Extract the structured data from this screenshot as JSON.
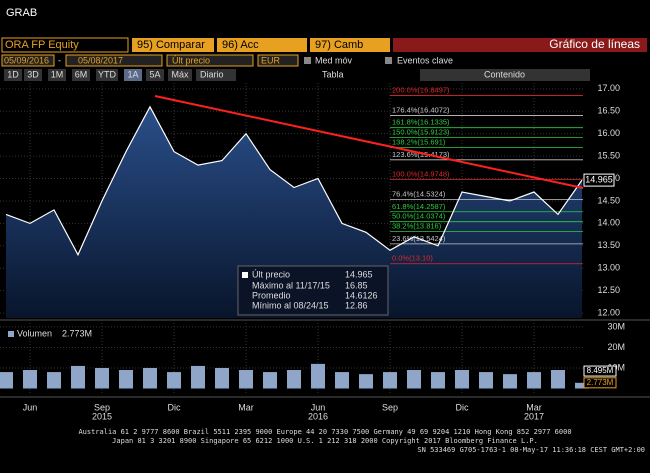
{
  "ui": {
    "title": "GRAB",
    "ticker": "ORA FP Equity",
    "buttons": [
      "95) Comparar",
      "96) Acc",
      "97) Camb"
    ],
    "chart_type": "Gráfico de líneas",
    "start_date": "05/09/2016",
    "date_sep": "-",
    "end_date": "05/08/2017",
    "field": "Últ precio",
    "currency": "EUR",
    "options": [
      "Med móv",
      "Eventos clave"
    ],
    "ranges": [
      "1D",
      "3D",
      "1M",
      "6M",
      "YTD",
      "1A",
      "5A",
      "Máx"
    ],
    "period": "Diario",
    "table": "Tabla",
    "content": "Contenido",
    "footer": [
      "Australia 61 2 9777 8600 Brazil 5511 2395 9000 Europe 44 20 7330 7500 Germany 49 69 9204 1210 Hong Kong 852 2977 6000",
      "Japan 81 3 3201 8900        Singapore 65 6212 1000        U.S. 1 212 318 2000        Copyright 2017 Bloomberg Finance L.P.",
      "SN 533469 G705-1763-1 08-May-17 11:36:18 CEST GMT+2:00"
    ]
  },
  "chart_data": [
    {
      "type": "line",
      "x": [
        "2015-05",
        "2015-06",
        "2015-07",
        "2015-08",
        "2015-09",
        "2015-10",
        "2015-11",
        "2015-12",
        "2016-01",
        "2016-02",
        "2016-03",
        "2016-04",
        "2016-05",
        "2016-06",
        "2016-07",
        "2016-08",
        "2016-09",
        "2016-10",
        "2016-11",
        "2016-12",
        "2017-01",
        "2017-02",
        "2017-03",
        "2017-04",
        "2017-05"
      ],
      "series": [
        {
          "name": "Últ precio",
          "color": "#ffffff",
          "values": [
            14.2,
            14.0,
            14.3,
            13.3,
            14.5,
            15.6,
            16.6,
            15.6,
            15.3,
            15.4,
            16.0,
            15.2,
            14.8,
            15.0,
            14.0,
            13.8,
            13.4,
            13.7,
            13.5,
            14.7,
            14.6,
            14.5,
            14.7,
            14.2,
            14.965
          ]
        }
      ],
      "xlim": [
        "2015-05",
        "2017-05"
      ],
      "ylim": [
        11.89,
        17.13
      ],
      "yticks": [
        {
          "value": 12,
          "label": "12.00"
        },
        {
          "value": 12.5,
          "label": "12.50"
        },
        {
          "value": 13,
          "label": "13.00"
        },
        {
          "value": 13.5,
          "label": "13.50"
        },
        {
          "value": 14,
          "label": "14.00"
        },
        {
          "value": 14.5,
          "label": "14.50"
        },
        {
          "value": 15,
          "label": "15.00"
        },
        {
          "value": 15.5,
          "label": "15.50"
        },
        {
          "value": 16,
          "label": "16.00"
        },
        {
          "value": 16.5,
          "label": "16.50"
        },
        {
          "value": 17,
          "label": "17.00"
        }
      ],
      "xticks": [
        {
          "value": "2015-06",
          "label": "Jun"
        },
        {
          "value": "2015-09",
          "label": "Sep"
        },
        {
          "value": "2015-12",
          "label": "Dic"
        },
        {
          "value": "2016-03",
          "label": "Mar"
        },
        {
          "value": "2016-06",
          "label": "Jun"
        },
        {
          "value": "2016-09",
          "label": "Sep"
        },
        {
          "value": "2016-12",
          "label": "Dic"
        },
        {
          "value": "2017-03",
          "label": "Mar"
        }
      ],
      "year_labels": [
        {
          "value": "2015-09",
          "label": "2015"
        },
        {
          "value": "2016-06",
          "label": "2016"
        },
        {
          "value": "2017-03",
          "label": "2017"
        }
      ],
      "fib_levels": [
        {
          "label": "200.0%(16.8497)",
          "value": 16.8497,
          "color": "#e02828"
        },
        {
          "label": "176.4%(16.4072)",
          "value": 16.4072,
          "color": "#c8c8c8"
        },
        {
          "label": "161.8%(16.1335)",
          "value": 16.1335,
          "color": "#2ecc40"
        },
        {
          "label": "150.0%(15.9123)",
          "value": 15.9123,
          "color": "#2ecc40"
        },
        {
          "label": "138.2%(15.691)",
          "value": 15.691,
          "color": "#2ecc40"
        },
        {
          "label": "123.6%(15.4173)",
          "value": 15.4173,
          "color": "#c8c8c8"
        },
        {
          "label": "100.0%(14.9748)",
          "value": 14.9748,
          "color": "#e02828"
        },
        {
          "label": "76.4%(14.5324)",
          "value": 14.5324,
          "color": "#c8c8c8"
        },
        {
          "label": "61.8%(14.2587)",
          "value": 14.2587,
          "color": "#2ecc40"
        },
        {
          "label": "50.0%(14.0374)",
          "value": 14.0374,
          "color": "#2ecc40"
        },
        {
          "label": "38.2%(13.816)",
          "value": 13.816,
          "color": "#2ecc40"
        },
        {
          "label": "23.6%(13.5424)",
          "value": 13.5424,
          "color": "#c8c8c8"
        },
        {
          "label": "0.0%(13.10)",
          "value": 13.1,
          "color": "#e02828"
        }
      ],
      "stats": [
        {
          "name": "Máximo al 11/17/15",
          "value": 16.85
        },
        {
          "name": "Promedio",
          "value": 14.6126
        },
        {
          "name": "Mínimo al 08/24/15",
          "value": 12.86
        }
      ]
    },
    {
      "type": "bar",
      "x": [
        "2015-05",
        "2015-06",
        "2015-07",
        "2015-08",
        "2015-09",
        "2015-10",
        "2015-11",
        "2015-12",
        "2016-01",
        "2016-02",
        "2016-03",
        "2016-04",
        "2016-05",
        "2016-06",
        "2016-07",
        "2016-08",
        "2016-09",
        "2016-10",
        "2016-11",
        "2016-12",
        "2017-01",
        "2017-02",
        "2017-03",
        "2017-04",
        "2017-05"
      ],
      "series": [
        {
          "name": "Volumen",
          "color": "#8fa6c8",
          "values": [
            8,
            9,
            8,
            11,
            10,
            9,
            10,
            8,
            11,
            10,
            9,
            8,
            9,
            12,
            8,
            7,
            8,
            9,
            8,
            9,
            8,
            7,
            8,
            9,
            2.773
          ]
        }
      ],
      "xlim": [
        "2015-05",
        "2017-05"
      ],
      "ylim": [
        0,
        32.4
      ],
      "yticks": [
        {
          "value": 10,
          "label": "10M"
        },
        {
          "value": 20,
          "label": "20M"
        },
        {
          "value": 30,
          "label": "30M"
        }
      ],
      "legend_value": {
        "value": 2.773,
        "label": "2.773M"
      },
      "markers": [
        {
          "value": 8.495,
          "label": "8.495M",
          "color": "#ffffff"
        },
        {
          "value": 2.773,
          "label": "2.773M",
          "color": "#e8a020"
        }
      ]
    }
  ]
}
